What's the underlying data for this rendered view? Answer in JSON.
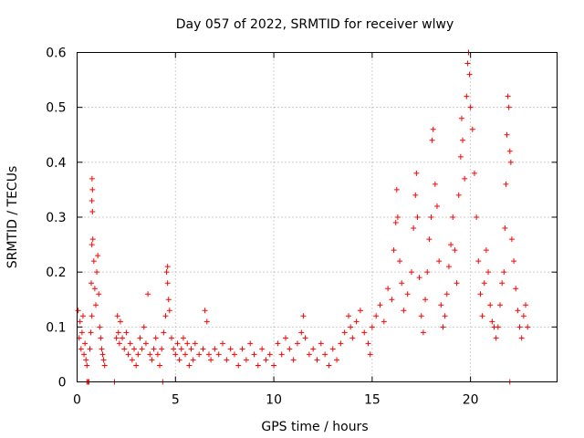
{
  "chart_data": {
    "type": "scatter",
    "title": "Day 057 of 2022, SRMTID for receiver wlwy",
    "xlabel": "GPS time / hours",
    "ylabel": "SRMTID / TECUs",
    "xlim": [
      0,
      24.4
    ],
    "ylim": [
      0,
      0.6
    ],
    "xticks": [
      0,
      5,
      10,
      15,
      20
    ],
    "xtick_labels": [
      "0",
      "5",
      "10",
      "15",
      "20"
    ],
    "yticks": [
      0,
      0.1,
      0.2,
      0.3,
      0.4,
      0.5,
      0.6
    ],
    "ytick_labels": [
      "0",
      "0.1",
      "0.2",
      "0.3",
      "0.4",
      "0.5",
      "0.6"
    ],
    "grid": true,
    "marker": "+",
    "color": "#ff0000",
    "series": [
      {
        "name": "SRMTID",
        "points": [
          [
            0.05,
            0.13
          ],
          [
            0.1,
            0.08
          ],
          [
            0.15,
            0.11
          ],
          [
            0.2,
            0.06
          ],
          [
            0.25,
            0.09
          ],
          [
            0.3,
            0.12
          ],
          [
            0.35,
            0.05
          ],
          [
            0.4,
            0.07
          ],
          [
            0.45,
            0.04
          ],
          [
            0.5,
            0.03
          ],
          [
            0.5,
            0
          ],
          [
            0.55,
            0
          ],
          [
            0.6,
            0
          ],
          [
            0.65,
            0.06
          ],
          [
            0.7,
            0.09
          ],
          [
            0.75,
            0.12
          ],
          [
            0.72,
            0.18
          ],
          [
            0.75,
            0.25
          ],
          [
            0.78,
            0.31
          ],
          [
            0.75,
            0.33
          ],
          [
            0.78,
            0.35
          ],
          [
            0.76,
            0.37
          ],
          [
            0.8,
            0.26
          ],
          [
            0.85,
            0.22
          ],
          [
            0.9,
            0.17
          ],
          [
            0.95,
            0.14
          ],
          [
            1.0,
            0.2
          ],
          [
            1.05,
            0.23
          ],
          [
            1.1,
            0.16
          ],
          [
            1.15,
            0.1
          ],
          [
            1.2,
            0.08
          ],
          [
            1.25,
            0.06
          ],
          [
            1.3,
            0.05
          ],
          [
            1.35,
            0.04
          ],
          [
            1.4,
            0.03
          ],
          [
            1.9,
            0
          ],
          [
            2.0,
            0.08
          ],
          [
            2.05,
            0.12
          ],
          [
            2.1,
            0.09
          ],
          [
            2.15,
            0.07
          ],
          [
            2.2,
            0.11
          ],
          [
            2.3,
            0.08
          ],
          [
            2.4,
            0.06
          ],
          [
            2.5,
            0.09
          ],
          [
            2.6,
            0.05
          ],
          [
            2.7,
            0.07
          ],
          [
            2.8,
            0.04
          ],
          [
            2.9,
            0.06
          ],
          [
            3.0,
            0.03
          ],
          [
            3.1,
            0.05
          ],
          [
            3.2,
            0.08
          ],
          [
            3.3,
            0.06
          ],
          [
            3.4,
            0.1
          ],
          [
            3.5,
            0.07
          ],
          [
            3.6,
            0.16
          ],
          [
            3.7,
            0.05
          ],
          [
            3.8,
            0.04
          ],
          [
            3.9,
            0.06
          ],
          [
            4.0,
            0.08
          ],
          [
            4.1,
            0.05
          ],
          [
            4.2,
            0.03
          ],
          [
            4.3,
            0.06
          ],
          [
            4.35,
            0
          ],
          [
            4.4,
            0.09
          ],
          [
            4.5,
            0.12
          ],
          [
            4.55,
            0.2
          ],
          [
            4.6,
            0.21
          ],
          [
            4.6,
            0.18
          ],
          [
            4.65,
            0.15
          ],
          [
            4.7,
            0.13
          ],
          [
            4.8,
            0.08
          ],
          [
            4.9,
            0.06
          ],
          [
            5.0,
            0.05
          ],
          [
            5.1,
            0.07
          ],
          [
            5.2,
            0.04
          ],
          [
            5.3,
            0.06
          ],
          [
            5.4,
            0.08
          ],
          [
            5.5,
            0.05
          ],
          [
            5.6,
            0.07
          ],
          [
            5.7,
            0.03
          ],
          [
            5.8,
            0.06
          ],
          [
            5.9,
            0.04
          ],
          [
            6.0,
            0.07
          ],
          [
            6.2,
            0.05
          ],
          [
            6.4,
            0.06
          ],
          [
            6.5,
            0.13
          ],
          [
            6.6,
            0.11
          ],
          [
            6.7,
            0.05
          ],
          [
            6.8,
            0.04
          ],
          [
            7.0,
            0.06
          ],
          [
            7.2,
            0.05
          ],
          [
            7.4,
            0.07
          ],
          [
            7.6,
            0.04
          ],
          [
            7.8,
            0.06
          ],
          [
            8.0,
            0.05
          ],
          [
            8.2,
            0.03
          ],
          [
            8.4,
            0.06
          ],
          [
            8.6,
            0.04
          ],
          [
            8.8,
            0.07
          ],
          [
            9.0,
            0.05
          ],
          [
            9.2,
            0.03
          ],
          [
            9.4,
            0.06
          ],
          [
            9.6,
            0.04
          ],
          [
            9.8,
            0.05
          ],
          [
            10.0,
            0.03
          ],
          [
            10.2,
            0.07
          ],
          [
            10.4,
            0.05
          ],
          [
            10.6,
            0.08
          ],
          [
            10.8,
            0.06
          ],
          [
            11.0,
            0.04
          ],
          [
            11.2,
            0.07
          ],
          [
            11.4,
            0.09
          ],
          [
            11.5,
            0.12
          ],
          [
            11.6,
            0.08
          ],
          [
            11.8,
            0.05
          ],
          [
            12.0,
            0.06
          ],
          [
            12.2,
            0.04
          ],
          [
            12.4,
            0.07
          ],
          [
            12.6,
            0.05
          ],
          [
            12.8,
            0.03
          ],
          [
            13.0,
            0.06
          ],
          [
            13.2,
            0.04
          ],
          [
            13.4,
            0.07
          ],
          [
            13.6,
            0.09
          ],
          [
            13.8,
            0.12
          ],
          [
            13.9,
            0.1
          ],
          [
            14.0,
            0.08
          ],
          [
            14.2,
            0.11
          ],
          [
            14.4,
            0.13
          ],
          [
            14.6,
            0.09
          ],
          [
            14.8,
            0.07
          ],
          [
            14.9,
            0.05
          ],
          [
            15.0,
            0.1
          ],
          [
            15.2,
            0.12
          ],
          [
            15.4,
            0.14
          ],
          [
            15.6,
            0.11
          ],
          [
            15.8,
            0.17
          ],
          [
            16.0,
            0.15
          ],
          [
            16.1,
            0.24
          ],
          [
            16.2,
            0.29
          ],
          [
            16.25,
            0.35
          ],
          [
            16.3,
            0.3
          ],
          [
            16.4,
            0.22
          ],
          [
            16.5,
            0.18
          ],
          [
            16.6,
            0.13
          ],
          [
            16.8,
            0.16
          ],
          [
            17.0,
            0.2
          ],
          [
            17.1,
            0.28
          ],
          [
            17.2,
            0.34
          ],
          [
            17.25,
            0.38
          ],
          [
            17.3,
            0.3
          ],
          [
            17.4,
            0.19
          ],
          [
            17.5,
            0.12
          ],
          [
            17.6,
            0.09
          ],
          [
            17.7,
            0.15
          ],
          [
            17.8,
            0.2
          ],
          [
            17.9,
            0.26
          ],
          [
            18.0,
            0.3
          ],
          [
            18.05,
            0.44
          ],
          [
            18.1,
            0.46
          ],
          [
            18.2,
            0.36
          ],
          [
            18.3,
            0.32
          ],
          [
            18.4,
            0.22
          ],
          [
            18.5,
            0.14
          ],
          [
            18.6,
            0.1
          ],
          [
            18.7,
            0.12
          ],
          [
            18.8,
            0.16
          ],
          [
            18.9,
            0.21
          ],
          [
            19.0,
            0.25
          ],
          [
            19.1,
            0.3
          ],
          [
            19.2,
            0.24
          ],
          [
            19.3,
            0.18
          ],
          [
            19.4,
            0.34
          ],
          [
            19.5,
            0.41
          ],
          [
            19.55,
            0.48
          ],
          [
            19.6,
            0.44
          ],
          [
            19.7,
            0.37
          ],
          [
            19.8,
            0.52
          ],
          [
            19.85,
            0.58
          ],
          [
            19.9,
            0.6
          ],
          [
            19.95,
            0.56
          ],
          [
            20.0,
            0.5
          ],
          [
            20.1,
            0.46
          ],
          [
            20.2,
            0.38
          ],
          [
            20.3,
            0.3
          ],
          [
            20.4,
            0.22
          ],
          [
            20.5,
            0.16
          ],
          [
            20.6,
            0.12
          ],
          [
            20.7,
            0.18
          ],
          [
            20.8,
            0.24
          ],
          [
            20.9,
            0.2
          ],
          [
            21.0,
            0.14
          ],
          [
            21.1,
            0.11
          ],
          [
            21.2,
            0.1
          ],
          [
            21.3,
            0.08
          ],
          [
            21.4,
            0.1
          ],
          [
            21.5,
            0.14
          ],
          [
            21.6,
            0.18
          ],
          [
            21.7,
            0.2
          ],
          [
            21.75,
            0.28
          ],
          [
            21.8,
            0.36
          ],
          [
            21.85,
            0.45
          ],
          [
            21.9,
            0.52
          ],
          [
            21.95,
            0.5
          ],
          [
            22.0,
            0.42
          ],
          [
            22.05,
            0.4
          ],
          [
            22.0,
            0
          ],
          [
            22.1,
            0.26
          ],
          [
            22.2,
            0.22
          ],
          [
            22.3,
            0.17
          ],
          [
            22.4,
            0.13
          ],
          [
            22.5,
            0.1
          ],
          [
            22.6,
            0.08
          ],
          [
            22.7,
            0.12
          ],
          [
            22.8,
            0.14
          ],
          [
            22.9,
            0.1
          ]
        ]
      }
    ]
  }
}
